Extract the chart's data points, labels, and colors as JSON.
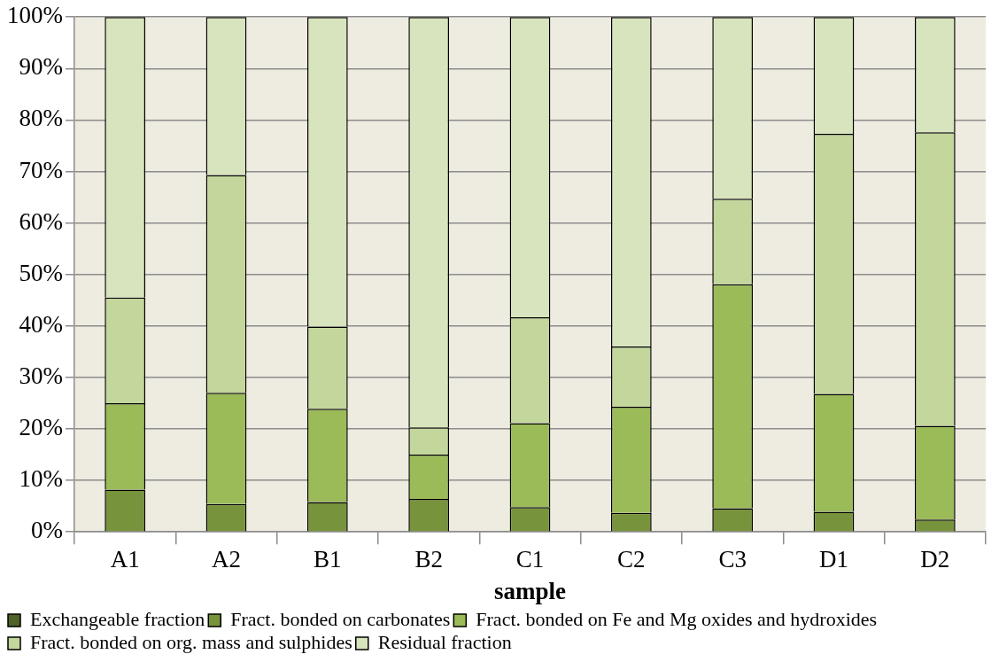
{
  "chart_data": {
    "type": "bar",
    "stacked": true,
    "xlabel": "sample",
    "categories": [
      "A1",
      "A2",
      "B1",
      "B2",
      "C1",
      "C2",
      "C3",
      "D1",
      "D2"
    ],
    "series": [
      {
        "name": "Exchangeable fraction",
        "color": "#4f6228",
        "values": [
          0,
          0,
          0,
          0,
          0,
          0,
          0,
          0,
          0
        ]
      },
      {
        "name": "Fract. bonded on carbonates",
        "color": "#77933c",
        "values": [
          8.2,
          5.4,
          5.8,
          6.4,
          4.8,
          3.7,
          4.6,
          3.9,
          2.4
        ]
      },
      {
        "name": "Fract. bonded on Fe and Mg oxides and hydroxides",
        "color": "#9bbb59",
        "values": [
          16.8,
          21.6,
          18.1,
          8.6,
          16.3,
          20.6,
          43.5,
          22.9,
          18.2
        ]
      },
      {
        "name": "Fract. bonded on org. mass and sulphides",
        "color": "#c3d69b",
        "values": [
          20.5,
          42.3,
          16,
          5.3,
          20.6,
          11.7,
          16.6,
          50.5,
          57
        ]
      },
      {
        "name": "Residual fraction",
        "color": "#d7e4bd",
        "values": [
          54.5,
          30.7,
          60.1,
          79.7,
          58.3,
          64,
          35.3,
          22.7,
          22.4
        ]
      }
    ],
    "ylim": [
      0,
      100
    ],
    "yticks": [
      {
        "value": 0,
        "label": "0%"
      },
      {
        "value": 10,
        "label": "10%"
      },
      {
        "value": 20,
        "label": "20%"
      },
      {
        "value": 30,
        "label": "30%"
      },
      {
        "value": 40,
        "label": "40%"
      },
      {
        "value": 50,
        "label": "50%"
      },
      {
        "value": 60,
        "label": "60%"
      },
      {
        "value": 70,
        "label": "70%"
      },
      {
        "value": 80,
        "label": "80%"
      },
      {
        "value": 90,
        "label": "90%"
      },
      {
        "value": 100,
        "label": "100%"
      }
    ],
    "grid": "y",
    "legend": "bottom"
  }
}
